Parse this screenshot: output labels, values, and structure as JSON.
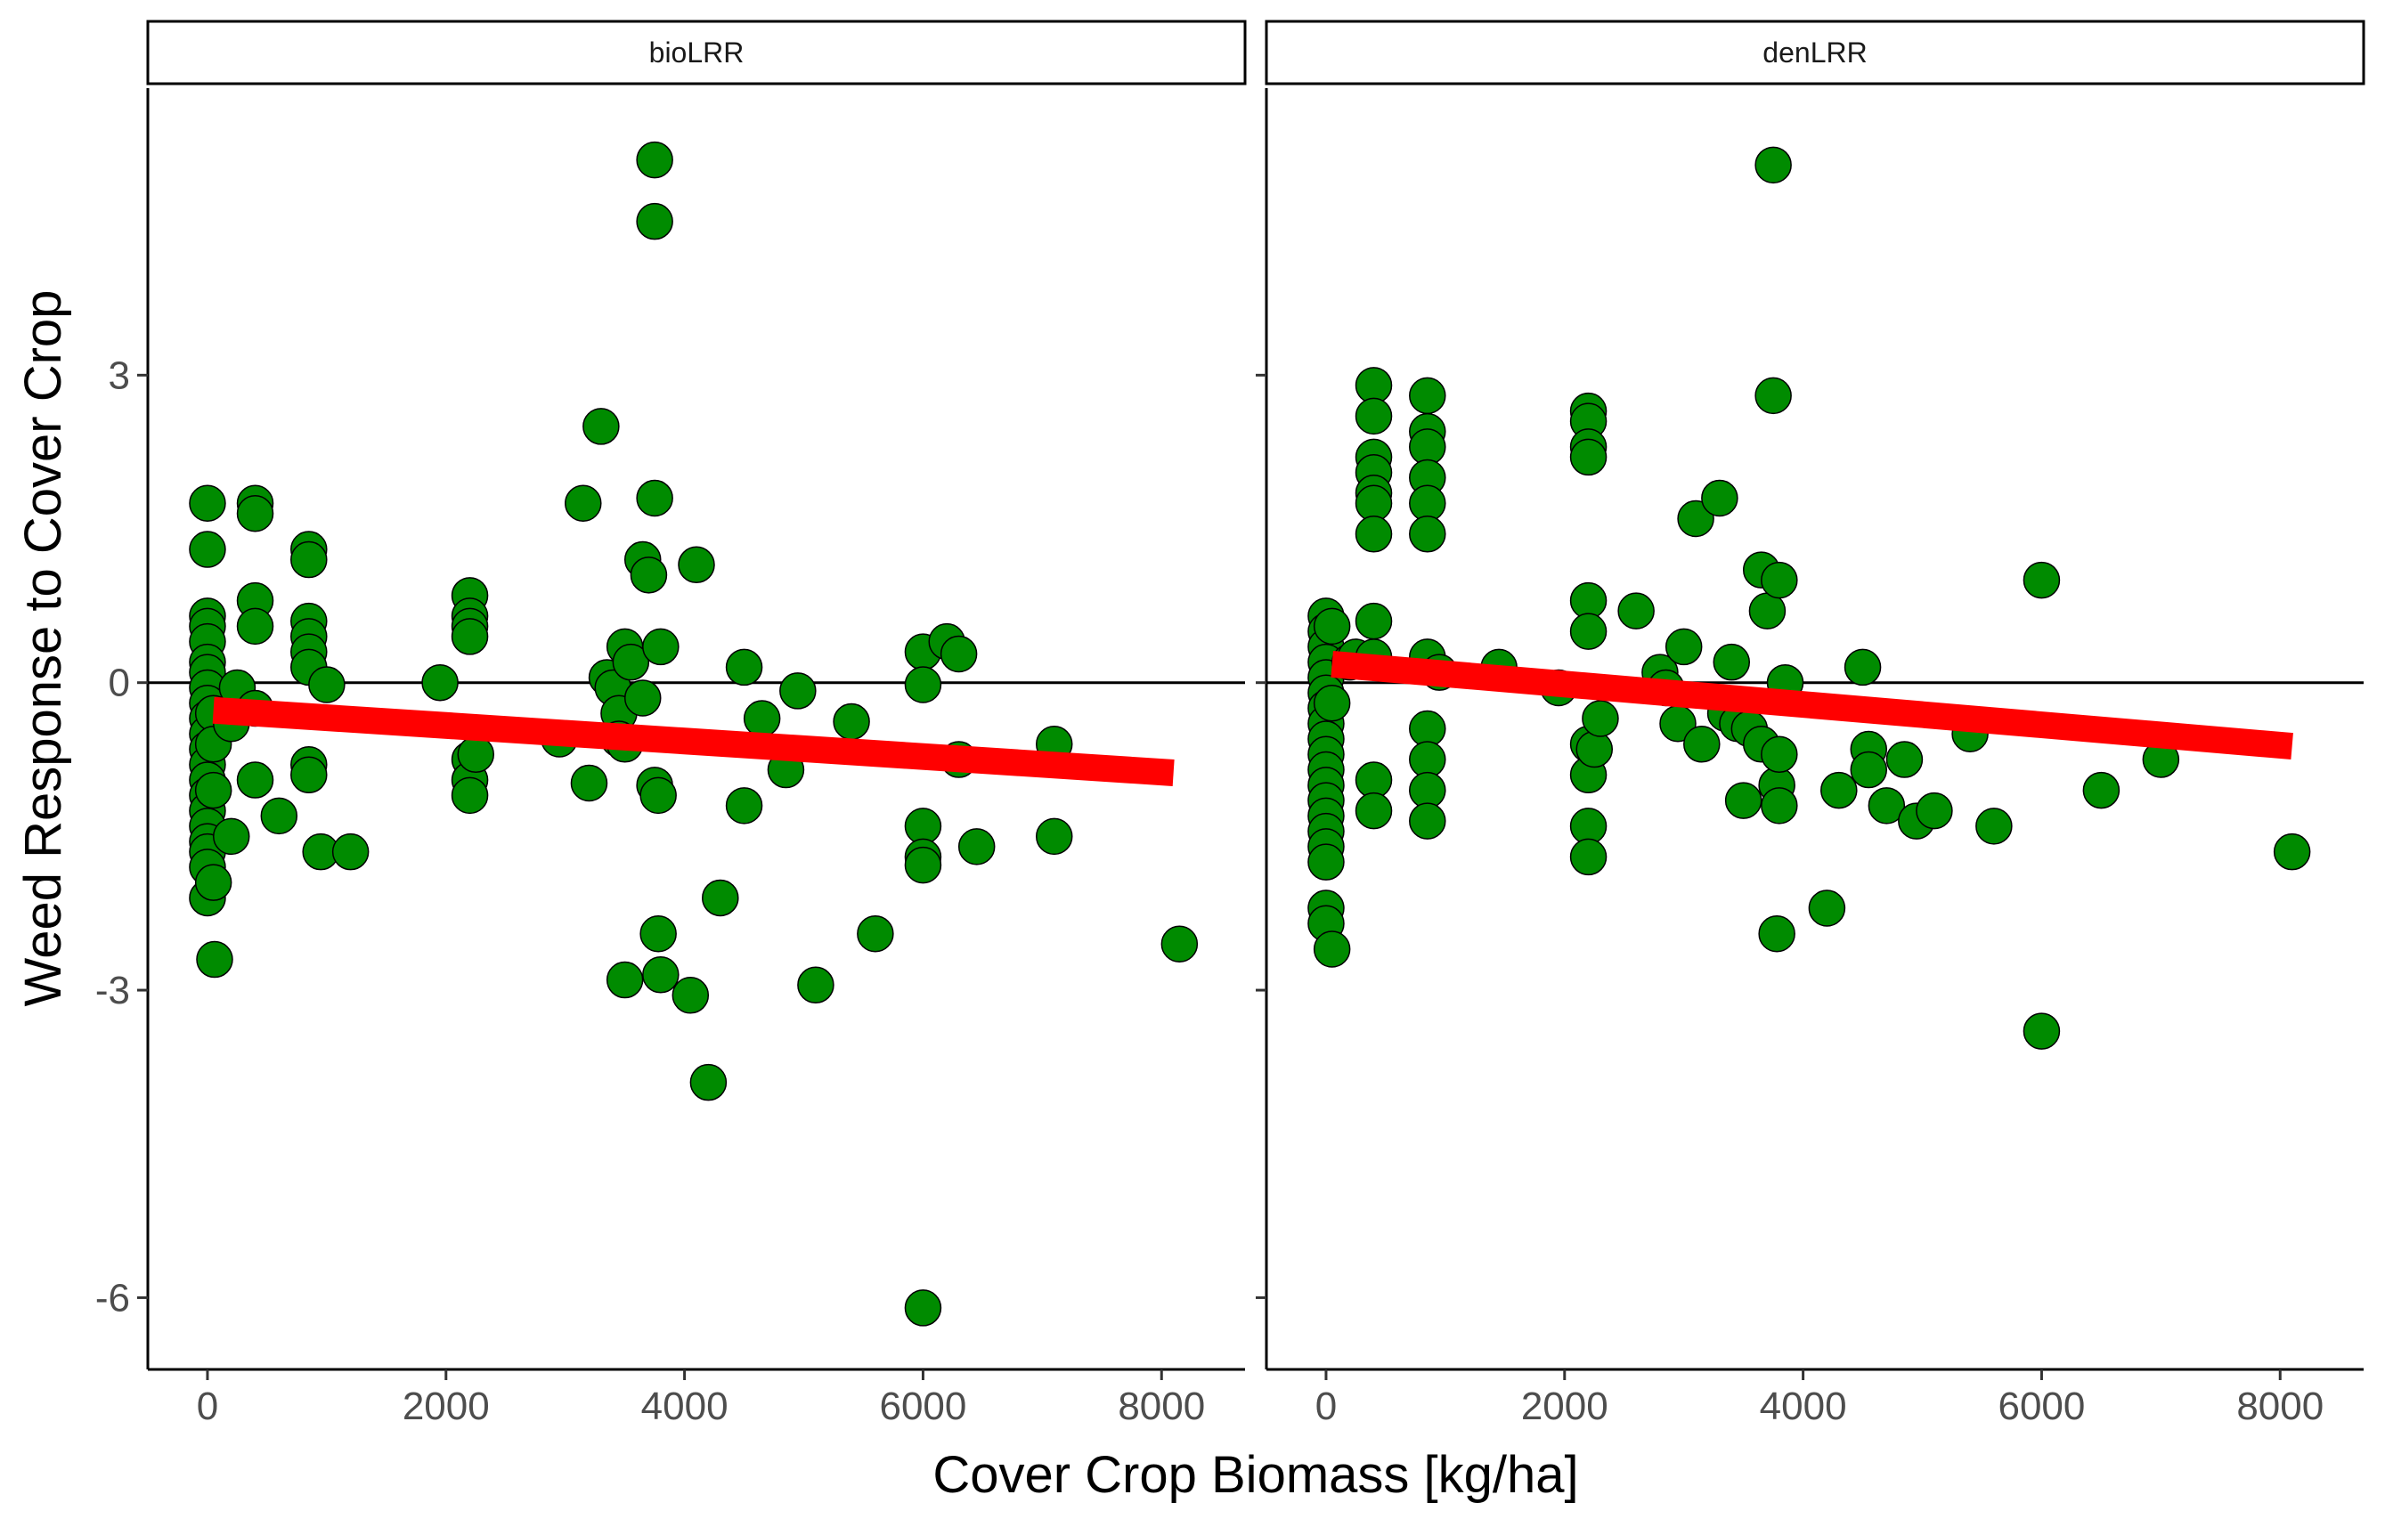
{
  "chart_data": {
    "type": "scatter",
    "xlabel": "Cover Crop Biomass [kg/ha]",
    "ylabel": "Weed Response to Cover Crop",
    "xlim": [
      -500,
      8700
    ],
    "ylim": [
      -6.7,
      5.8
    ],
    "x_ticks": [
      0,
      2000,
      4000,
      6000,
      8000
    ],
    "y_ticks": [
      -6,
      -3,
      0,
      3
    ],
    "y_tick_labels": [
      "-6",
      "-3",
      "0",
      "3"
    ],
    "reference_line_y": 0,
    "colors": {
      "points": "#008B00",
      "point_outline": "#000000",
      "fit_line": "#FF0000",
      "reference_line": "#000000"
    },
    "panels": [
      {
        "strip_label": "bioLRR",
        "fit": {
          "x": [
            50,
            8100
          ],
          "y": [
            -0.27,
            -0.88
          ]
        },
        "points": [
          [
            0,
            1.75
          ],
          [
            0,
            1.3
          ],
          [
            0,
            0.65
          ],
          [
            0,
            0.55
          ],
          [
            0,
            0.4
          ],
          [
            0,
            0.2
          ],
          [
            0,
            0.1
          ],
          [
            0,
            -0.05
          ],
          [
            0,
            -0.2
          ],
          [
            0,
            -0.35
          ],
          [
            0,
            -0.5
          ],
          [
            0,
            -0.65
          ],
          [
            0,
            -0.8
          ],
          [
            0,
            -0.95
          ],
          [
            0,
            -1.1
          ],
          [
            0,
            -1.25
          ],
          [
            0,
            -1.4
          ],
          [
            0,
            -1.55
          ],
          [
            0,
            -1.65
          ],
          [
            0,
            -1.8
          ],
          [
            0,
            -2.1
          ],
          [
            50,
            -0.3
          ],
          [
            50,
            -0.6
          ],
          [
            50,
            -1.05
          ],
          [
            50,
            -1.95
          ],
          [
            60,
            -2.7
          ],
          [
            200,
            -0.4
          ],
          [
            200,
            -1.5
          ],
          [
            250,
            -0.05
          ],
          [
            400,
            1.75
          ],
          [
            400,
            1.65
          ],
          [
            400,
            0.8
          ],
          [
            400,
            0.55
          ],
          [
            400,
            -0.25
          ],
          [
            400,
            -0.95
          ],
          [
            600,
            -1.3
          ],
          [
            850,
            1.3
          ],
          [
            850,
            1.2
          ],
          [
            850,
            0.6
          ],
          [
            850,
            0.45
          ],
          [
            850,
            0.3
          ],
          [
            850,
            0.15
          ],
          [
            850,
            -0.8
          ],
          [
            850,
            -0.9
          ],
          [
            950,
            -1.65
          ],
          [
            1000,
            -0.02
          ],
          [
            1200,
            -1.65
          ],
          [
            1950,
            0.0
          ],
          [
            2200,
            0.85
          ],
          [
            2200,
            0.65
          ],
          [
            2200,
            0.55
          ],
          [
            2200,
            0.45
          ],
          [
            2200,
            -0.75
          ],
          [
            2200,
            -0.95
          ],
          [
            2200,
            -1.1
          ],
          [
            2250,
            -0.7
          ],
          [
            2950,
            -0.55
          ],
          [
            3150,
            1.75
          ],
          [
            3200,
            -0.98
          ],
          [
            3300,
            2.5
          ],
          [
            3350,
            0.05
          ],
          [
            3400,
            -0.05
          ],
          [
            3450,
            -0.3
          ],
          [
            3450,
            -0.55
          ],
          [
            3500,
            0.35
          ],
          [
            3500,
            -0.6
          ],
          [
            3500,
            -2.9
          ],
          [
            3550,
            0.2
          ],
          [
            3650,
            1.2
          ],
          [
            3650,
            -0.15
          ],
          [
            3700,
            1.05
          ],
          [
            3750,
            5.1
          ],
          [
            3750,
            4.5
          ],
          [
            3750,
            1.8
          ],
          [
            3750,
            -1.0
          ],
          [
            3780,
            -1.1
          ],
          [
            3780,
            -2.45
          ],
          [
            3800,
            -2.85
          ],
          [
            3800,
            0.35
          ],
          [
            4050,
            -3.05
          ],
          [
            4100,
            1.15
          ],
          [
            4200,
            -3.9
          ],
          [
            4300,
            -2.1
          ],
          [
            4500,
            0.15
          ],
          [
            4500,
            -1.2
          ],
          [
            4650,
            -0.35
          ],
          [
            4850,
            -0.85
          ],
          [
            4950,
            -0.08
          ],
          [
            5100,
            -2.95
          ],
          [
            5400,
            -0.38
          ],
          [
            5600,
            -2.45
          ],
          [
            6000,
            0.3
          ],
          [
            6000,
            -0.02
          ],
          [
            6000,
            -1.4
          ],
          [
            6000,
            -1.7
          ],
          [
            6000,
            -1.78
          ],
          [
            6000,
            -6.1
          ],
          [
            6200,
            0.4
          ],
          [
            6300,
            0.28
          ],
          [
            6300,
            -0.75
          ],
          [
            6450,
            -1.6
          ],
          [
            7100,
            -0.6
          ],
          [
            7100,
            -1.5
          ],
          [
            8150,
            -2.55
          ]
        ]
      },
      {
        "strip_label": "denLRR",
        "fit": {
          "x": [
            50,
            8100
          ],
          "y": [
            0.18,
            -0.62
          ]
        },
        "points": [
          [
            0,
            0.65
          ],
          [
            0,
            0.5
          ],
          [
            0,
            0.35
          ],
          [
            0,
            0.2
          ],
          [
            0,
            0.05
          ],
          [
            0,
            -0.1
          ],
          [
            0,
            -0.25
          ],
          [
            0,
            -0.4
          ],
          [
            0,
            -0.55
          ],
          [
            0,
            -0.7
          ],
          [
            0,
            -0.85
          ],
          [
            0,
            -1.0
          ],
          [
            0,
            -1.15
          ],
          [
            0,
            -1.3
          ],
          [
            0,
            -1.45
          ],
          [
            0,
            -1.6
          ],
          [
            0,
            -1.75
          ],
          [
            0,
            -2.2
          ],
          [
            0,
            -2.35
          ],
          [
            50,
            0.55
          ],
          [
            50,
            -0.2
          ],
          [
            50,
            -2.6
          ],
          [
            200,
            0.2
          ],
          [
            250,
            0.25
          ],
          [
            400,
            2.9
          ],
          [
            400,
            2.6
          ],
          [
            400,
            2.2
          ],
          [
            400,
            2.05
          ],
          [
            400,
            1.85
          ],
          [
            400,
            1.75
          ],
          [
            400,
            1.45
          ],
          [
            400,
            0.6
          ],
          [
            400,
            0.25
          ],
          [
            400,
            -0.95
          ],
          [
            400,
            -1.25
          ],
          [
            850,
            2.8
          ],
          [
            850,
            2.45
          ],
          [
            850,
            2.3
          ],
          [
            850,
            2.0
          ],
          [
            850,
            1.75
          ],
          [
            850,
            1.45
          ],
          [
            850,
            0.25
          ],
          [
            850,
            -0.45
          ],
          [
            850,
            -0.75
          ],
          [
            850,
            -1.05
          ],
          [
            850,
            -1.35
          ],
          [
            950,
            0.1
          ],
          [
            1450,
            0.15
          ],
          [
            1950,
            -0.05
          ],
          [
            2200,
            2.65
          ],
          [
            2200,
            2.55
          ],
          [
            2200,
            2.3
          ],
          [
            2200,
            2.2
          ],
          [
            2200,
            0.8
          ],
          [
            2200,
            0.5
          ],
          [
            2200,
            -0.6
          ],
          [
            2200,
            -0.9
          ],
          [
            2200,
            -1.4
          ],
          [
            2200,
            -1.7
          ],
          [
            2250,
            -0.65
          ],
          [
            2300,
            -0.35
          ],
          [
            2600,
            0.7
          ],
          [
            2800,
            0.1
          ],
          [
            2850,
            -0.05
          ],
          [
            2950,
            -0.4
          ],
          [
            3000,
            0.35
          ],
          [
            3100,
            1.6
          ],
          [
            3150,
            -0.6
          ],
          [
            3300,
            1.8
          ],
          [
            3350,
            -0.3
          ],
          [
            3400,
            0.2
          ],
          [
            3450,
            -0.4
          ],
          [
            3500,
            -1.15
          ],
          [
            3550,
            -0.45
          ],
          [
            3650,
            1.1
          ],
          [
            3650,
            -0.6
          ],
          [
            3700,
            0.7
          ],
          [
            3750,
            5.05
          ],
          [
            3750,
            2.8
          ],
          [
            3780,
            -1.0
          ],
          [
            3780,
            -2.45
          ],
          [
            3800,
            1.0
          ],
          [
            3800,
            -0.7
          ],
          [
            3800,
            -1.2
          ],
          [
            3850,
            0.0
          ],
          [
            4200,
            -2.2
          ],
          [
            4300,
            -1.05
          ],
          [
            4500,
            0.15
          ],
          [
            4550,
            -0.65
          ],
          [
            4550,
            -0.85
          ],
          [
            4700,
            -1.2
          ],
          [
            4850,
            -0.75
          ],
          [
            4950,
            -1.35
          ],
          [
            5100,
            -1.25
          ],
          [
            5400,
            -0.5
          ],
          [
            5600,
            -1.4
          ],
          [
            6000,
            1.0
          ],
          [
            6000,
            -3.4
          ],
          [
            6500,
            -1.05
          ],
          [
            7000,
            -0.75
          ],
          [
            8100,
            -1.65
          ]
        ]
      }
    ]
  }
}
